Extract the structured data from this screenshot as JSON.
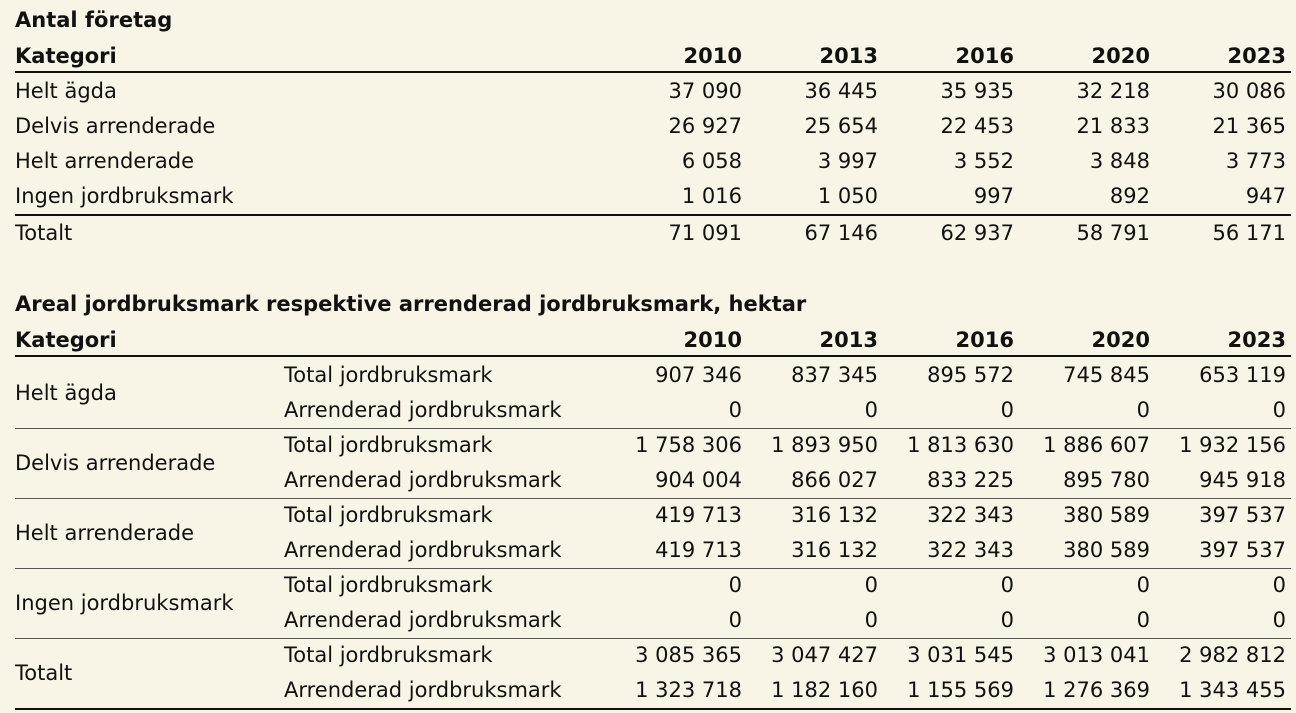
{
  "table1": {
    "title": "Antal företag",
    "header": {
      "category": "Kategori",
      "years": [
        "2010",
        "2013",
        "2016",
        "2020",
        "2023"
      ]
    },
    "rows": [
      {
        "label": "Helt ägda",
        "values": [
          "37 090",
          "36 445",
          "35 935",
          "32 218",
          "30 086"
        ]
      },
      {
        "label": "Delvis arrenderade",
        "values": [
          "26 927",
          "25 654",
          "22 453",
          "21 833",
          "21 365"
        ]
      },
      {
        "label": "Helt arrenderade",
        "values": [
          "6 058",
          "3 997",
          "3 552",
          "3 848",
          "3 773"
        ]
      },
      {
        "label": "Ingen jordbruksmark",
        "values": [
          "1 016",
          "1 050",
          "997",
          "892",
          "947"
        ]
      }
    ],
    "total": {
      "label": "Totalt",
      "values": [
        "71 091",
        "67 146",
        "62 937",
        "58 791",
        "56 171"
      ]
    }
  },
  "table2": {
    "title": "Areal jordbruksmark respektive arrenderad jordbruksmark, hektar",
    "header": {
      "category": "Kategori",
      "years": [
        "2010",
        "2013",
        "2016",
        "2020",
        "2023"
      ]
    },
    "groups": [
      {
        "label": "Helt ägda",
        "rows": [
          {
            "label": "Total jordbruksmark",
            "values": [
              "907 346",
              "837 345",
              "895 572",
              "745 845",
              "653 119"
            ]
          },
          {
            "label": "Arrenderad jordbruksmark",
            "values": [
              "0",
              "0",
              "0",
              "0",
              "0"
            ]
          }
        ]
      },
      {
        "label": "Delvis arrenderade",
        "rows": [
          {
            "label": "Total jordbruksmark",
            "values": [
              "1 758 306",
              "1 893 950",
              "1 813 630",
              "1 886 607",
              "1 932 156"
            ]
          },
          {
            "label": "Arrenderad jordbruksmark",
            "values": [
              "904 004",
              "866 027",
              "833 225",
              "895 780",
              "945 918"
            ]
          }
        ]
      },
      {
        "label": "Helt arrenderade",
        "rows": [
          {
            "label": "Total jordbruksmark",
            "values": [
              "419 713",
              "316 132",
              "322 343",
              "380 589",
              "397 537"
            ]
          },
          {
            "label": "Arrenderad jordbruksmark",
            "values": [
              "419 713",
              "316 132",
              "322 343",
              "380 589",
              "397 537"
            ]
          }
        ]
      },
      {
        "label": "Ingen jordbruksmark",
        "rows": [
          {
            "label": "Total jordbruksmark",
            "values": [
              "0",
              "0",
              "0",
              "0",
              "0"
            ]
          },
          {
            "label": "Arrenderad jordbruksmark",
            "values": [
              "0",
              "0",
              "0",
              "0",
              "0"
            ]
          }
        ]
      },
      {
        "label": "Totalt",
        "rows": [
          {
            "label": "Total jordbruksmark",
            "values": [
              "3 085 365",
              "3 047 427",
              "3 031 545",
              "3 013 041",
              "2 982 812"
            ]
          },
          {
            "label": "Arrenderad jordbruksmark",
            "values": [
              "1 323 718",
              "1 182 160",
              "1 155 569",
              "1 276 369",
              "1 343 455"
            ]
          }
        ]
      }
    ]
  }
}
